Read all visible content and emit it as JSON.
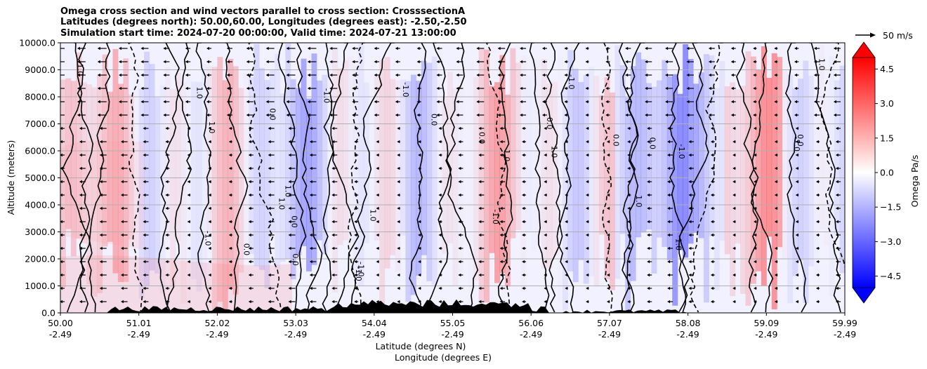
{
  "chart_data": {
    "type": "heatmap",
    "title_lines": [
      "Omega cross section and wind vectors parallel to cross section: CrosssectionA",
      "Latitudes (degrees north): 50.00,60.00, Longitudes (degrees east): -2.50,-2.50",
      "Simulation start time: 2024-07-20 00:00:00, Valid time: 2024-07-21 13:00:00"
    ],
    "ylabel": "Altitude (meters)",
    "xlabel_lines": [
      "Latitude (degrees N)",
      "Longitude (degrees E)"
    ],
    "ylim": [
      0,
      10000
    ],
    "yticks": [
      "0.0",
      "1000.0",
      "2000.0",
      "3000.0",
      "4000.0",
      "5000.0",
      "6000.0",
      "7000.0",
      "8000.0",
      "9000.0",
      "10000.0"
    ],
    "xticks": [
      {
        "lat": "50.00",
        "lon": "-2.49"
      },
      {
        "lat": "51.01",
        "lon": "-2.49"
      },
      {
        "lat": "52.02",
        "lon": "-2.49"
      },
      {
        "lat": "53.03",
        "lon": "-2.49"
      },
      {
        "lat": "54.04",
        "lon": "-2.49"
      },
      {
        "lat": "55.05",
        "lon": "-2.49"
      },
      {
        "lat": "56.06",
        "lon": "-2.49"
      },
      {
        "lat": "57.07",
        "lon": "-2.49"
      },
      {
        "lat": "58.08",
        "lon": "-2.49"
      },
      {
        "lat": "59.09",
        "lon": "-2.49"
      },
      {
        "lat": "59.99",
        "lon": "-2.49"
      }
    ],
    "grid": "horizontal",
    "colorbar": {
      "label": "Omega Pa/s",
      "ticks": [
        "4.5",
        "3.0",
        "1.5",
        "0.0",
        "−1.5",
        "−3.0",
        "−4.5"
      ],
      "range": [
        -5,
        5
      ],
      "cmap": "bwr",
      "extend": "both"
    },
    "quiver_key": {
      "label": "50 m/s"
    },
    "contour_labels": [
      "0.0",
      "-1.0",
      "1.0"
    ],
    "colors": {
      "positive": "#ff0000",
      "negative": "#0000ff",
      "terrain": "#000000"
    }
  }
}
